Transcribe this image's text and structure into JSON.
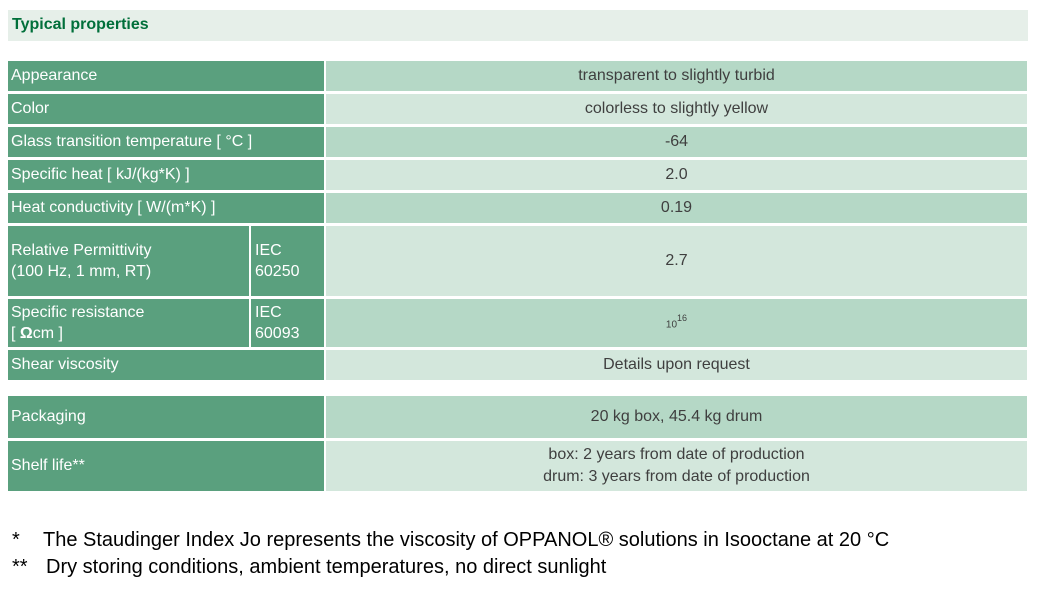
{
  "title": "Typical properties",
  "properties": [
    {
      "label": "Appearance",
      "value": "transparent to slightly turbid"
    },
    {
      "label": "Color",
      "value": "colorless to slightly yellow"
    },
    {
      "label": "Glass transition temperature [ °C ]",
      "value": "-64"
    },
    {
      "label": "Specific heat [ kJ/(kg*K) ]",
      "value": "2.0"
    },
    {
      "label": "Heat conductivity [ W/(m*K) ]",
      "value": "0.19"
    },
    {
      "label_line1": "Relative Permittivity",
      "label_line2": "(100 Hz, 1 mm, RT)",
      "std_line1": "IEC",
      "std_line2": "60250",
      "value": "2.7"
    },
    {
      "label_line1": "Specific resistance",
      "label_line2_prefix": "[ ",
      "label_line2_bold": "Ω",
      "label_line2_suffix": "cm ]",
      "std_line1": "IEC",
      "std_line2": "60093",
      "value_base": "10",
      "value_exp": "16"
    },
    {
      "label": "Shear viscosity",
      "value": "Details upon request"
    }
  ],
  "packaging": {
    "label": "Packaging",
    "value": "20 kg box, 45.4 kg drum"
  },
  "shelf_life": {
    "label": "Shelf life**",
    "value_line1": "box: 2 years from date of production",
    "value_line2": "drum: 3 years from date of production"
  },
  "footnotes": [
    {
      "mark": "*",
      "text": "The Staudinger Index Jo represents the viscosity of OPPANOL® solutions in Isooctane at 20 °C"
    },
    {
      "mark": "**",
      "text": "Dry storing conditions, ambient temperatures, no direct sunlight"
    }
  ],
  "colors": {
    "label_bg": "#5aa07e",
    "value_dark": "#b5d8c6",
    "value_light": "#d3e7dc",
    "title_text": "#006f3a"
  }
}
